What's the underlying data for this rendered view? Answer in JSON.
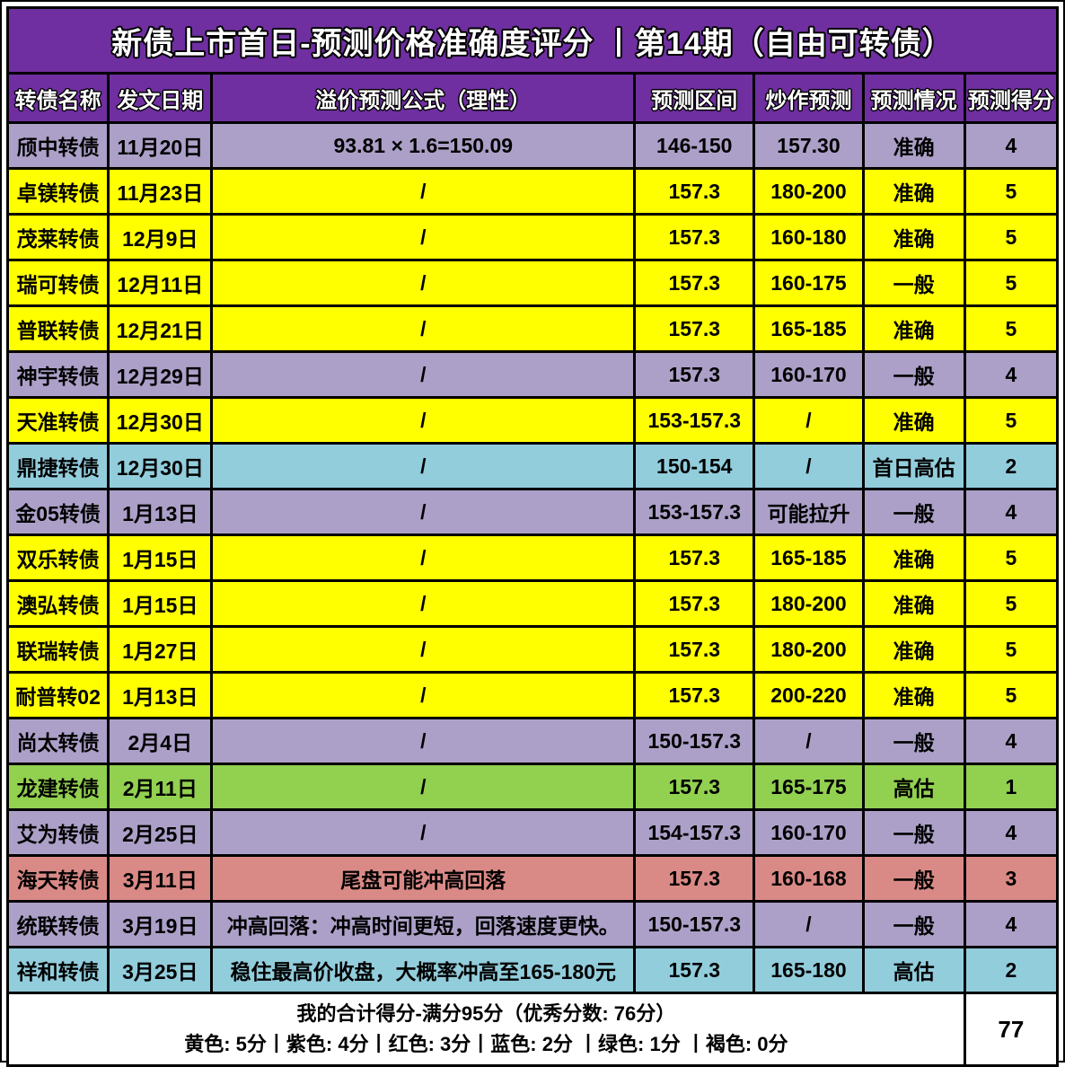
{
  "title": "新债上市首日-预测价格准确度评分 丨第14期（自由可转债）",
  "columns": [
    "转债名称",
    "发文日期",
    "溢价预测公式（理性）",
    "预测区间",
    "炒作预测",
    "预测情况",
    "预测得分"
  ],
  "colors": {
    "header_purple": "#6F2FA0",
    "yellow": "#FFFF00",
    "purple": "#ACA0C8",
    "cyan": "#92CDDC",
    "green": "#92D050",
    "red": "#DA8A86",
    "grid": "#000000"
  },
  "rows": [
    {
      "name": "颀中转债",
      "date": "11月20日",
      "formula": "93.81 × 1.6=150.09",
      "range": "146-150",
      "hype": "157.30",
      "status": "准确",
      "score": "4",
      "color": "purple"
    },
    {
      "name": "卓镁转债",
      "date": "11月23日",
      "formula": "/",
      "range": "157.3",
      "hype": "180-200",
      "status": "准确",
      "score": "5",
      "color": "yellow"
    },
    {
      "name": "茂莱转债",
      "date": "12月9日",
      "formula": "/",
      "range": "157.3",
      "hype": "160-180",
      "status": "准确",
      "score": "5",
      "color": "yellow"
    },
    {
      "name": "瑞可转债",
      "date": "12月11日",
      "formula": "/",
      "range": "157.3",
      "hype": "160-175",
      "status": "一般",
      "score": "5",
      "color": "yellow"
    },
    {
      "name": "普联转债",
      "date": "12月21日",
      "formula": "/",
      "range": "157.3",
      "hype": "165-185",
      "status": "准确",
      "score": "5",
      "color": "yellow"
    },
    {
      "name": "神宇转债",
      "date": "12月29日",
      "formula": "/",
      "range": "157.3",
      "hype": "160-170",
      "status": "一般",
      "score": "4",
      "color": "purple"
    },
    {
      "name": "天准转债",
      "date": "12月30日",
      "formula": "/",
      "range": "153-157.3",
      "hype": "/",
      "status": "准确",
      "score": "5",
      "color": "yellow"
    },
    {
      "name": "鼎捷转债",
      "date": "12月30日",
      "formula": "/",
      "range": "150-154",
      "hype": "/",
      "status": "首日高估",
      "score": "2",
      "color": "cyan"
    },
    {
      "name": "金05转债",
      "date": "1月13日",
      "formula": "/",
      "range": "153-157.3",
      "hype": "可能拉升",
      "status": "一般",
      "score": "4",
      "color": "purple"
    },
    {
      "name": "双乐转债",
      "date": "1月15日",
      "formula": "/",
      "range": "157.3",
      "hype": "165-185",
      "status": "准确",
      "score": "5",
      "color": "yellow"
    },
    {
      "name": "澳弘转债",
      "date": "1月15日",
      "formula": "/",
      "range": "157.3",
      "hype": "180-200",
      "status": "准确",
      "score": "5",
      "color": "yellow"
    },
    {
      "name": "联瑞转债",
      "date": "1月27日",
      "formula": "/",
      "range": "157.3",
      "hype": "180-200",
      "status": "准确",
      "score": "5",
      "color": "yellow"
    },
    {
      "name": "耐普转02",
      "date": "1月13日",
      "formula": "/",
      "range": "157.3",
      "hype": "200-220",
      "status": "准确",
      "score": "5",
      "color": "yellow"
    },
    {
      "name": "尚太转债",
      "date": "2月4日",
      "formula": "/",
      "range": "150-157.3",
      "hype": "/",
      "status": "一般",
      "score": "4",
      "color": "purple"
    },
    {
      "name": "龙建转债",
      "date": "2月11日",
      "formula": "/",
      "range": "157.3",
      "hype": "165-175",
      "status": "高估",
      "score": "1",
      "color": "green"
    },
    {
      "name": "艾为转债",
      "date": "2月25日",
      "formula": "/",
      "range": "154-157.3",
      "hype": "160-170",
      "status": "一般",
      "score": "4",
      "color": "purple"
    },
    {
      "name": "海天转债",
      "date": "3月11日",
      "formula": "尾盘可能冲高回落",
      "range": "157.3",
      "hype": "160-168",
      "status": "一般",
      "score": "3",
      "color": "red"
    },
    {
      "name": "统联转债",
      "date": "3月19日",
      "formula": "冲高回落：冲高时间更短，回落速度更快。",
      "range": "150-157.3",
      "hype": "/",
      "status": "一般",
      "score": "4",
      "color": "purple"
    },
    {
      "name": "祥和转债",
      "date": "3月25日",
      "formula": "稳住最高价收盘，大概率冲高至165-180元",
      "range": "157.3",
      "hype": "165-180",
      "status": "高估",
      "score": "2",
      "color": "cyan"
    }
  ],
  "footer": {
    "line1": "我的合计得分-满分95分（优秀分数: 76分）",
    "line2": "黄色: 5分丨紫色: 4分丨红色: 3分丨蓝色: 2分 丨绿色: 1分  丨褐色: 0分",
    "total": "77"
  }
}
